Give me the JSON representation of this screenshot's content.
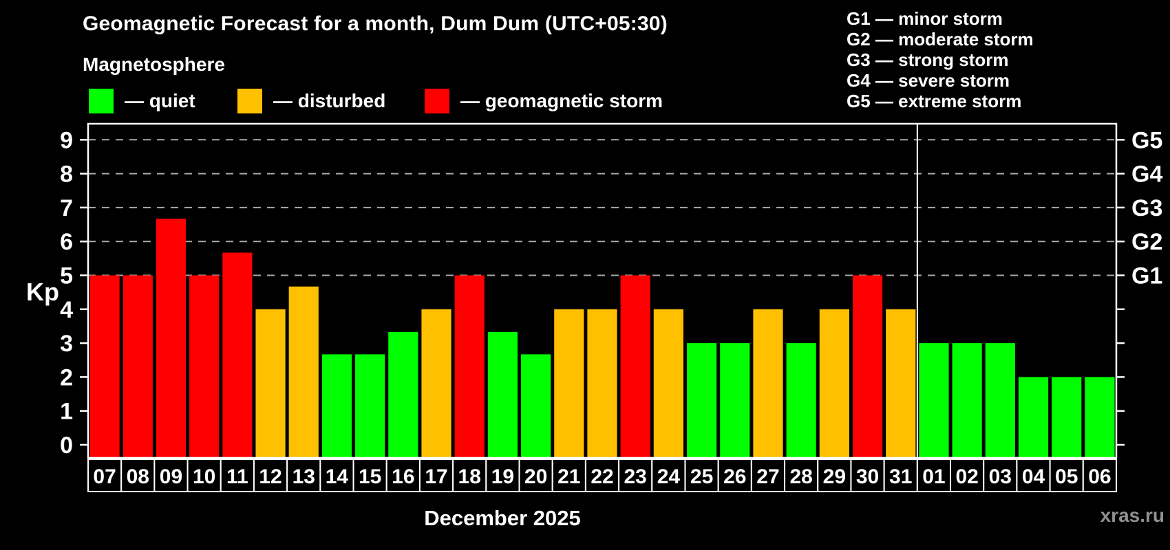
{
  "header": {
    "title": "Geomagnetic Forecast for a month, Dum Dum (UTC+05:30)",
    "subtitle": "Magnetosphere"
  },
  "legend": {
    "items": [
      {
        "status": "quiet",
        "label": "— quiet"
      },
      {
        "status": "disturbed",
        "label": "— disturbed"
      },
      {
        "status": "storm",
        "label": "— geomagnetic storm"
      }
    ]
  },
  "storm_legend": {
    "items": [
      "G1 — minor storm",
      "G2 — moderate storm",
      "G3 — strong storm",
      "G4 — severe storm",
      "G5 — extreme storm"
    ]
  },
  "colors": {
    "quiet": "#00ff00",
    "disturbed": "#ffc000",
    "storm": "#ff0000",
    "grid": "#aaaaaa",
    "axis": "#ffffff",
    "background": "#000000",
    "watermark": "#909090"
  },
  "chart_data": {
    "type": "bar",
    "title": "Geomagnetic Forecast for a month, Dum Dum (UTC+05:30)",
    "ylabel": "Kp",
    "xlabel": "December 2025",
    "ylim": [
      -0.4,
      9.5
    ],
    "yticks": [
      0,
      1,
      2,
      3,
      4,
      5,
      6,
      7,
      8,
      9
    ],
    "gridline_values": [
      5,
      6,
      7,
      8,
      9
    ],
    "grid": "dashed horizontal lines at G-storm levels only",
    "legend_position": "top-left",
    "right_axis_labels": [
      {
        "label": "G1",
        "value": 5
      },
      {
        "label": "G2",
        "value": 6
      },
      {
        "label": "G3",
        "value": 7
      },
      {
        "label": "G4",
        "value": 8
      },
      {
        "label": "G5",
        "value": 9
      }
    ],
    "categories": [
      "07",
      "08",
      "09",
      "10",
      "11",
      "12",
      "13",
      "14",
      "15",
      "16",
      "17",
      "18",
      "19",
      "20",
      "21",
      "22",
      "23",
      "24",
      "25",
      "26",
      "27",
      "28",
      "29",
      "30",
      "31",
      "01",
      "02",
      "03",
      "04",
      "05",
      "06"
    ],
    "values": [
      5,
      5,
      6.67,
      5,
      5.67,
      4,
      4.67,
      2.67,
      2.67,
      3.33,
      4,
      5,
      3.33,
      2.67,
      4,
      4,
      5,
      4,
      3,
      3,
      4,
      3,
      4,
      5,
      4,
      3,
      3,
      3,
      2,
      2,
      2
    ],
    "statuses": [
      "storm",
      "storm",
      "storm",
      "storm",
      "storm",
      "disturbed",
      "disturbed",
      "quiet",
      "quiet",
      "quiet",
      "disturbed",
      "storm",
      "quiet",
      "quiet",
      "disturbed",
      "disturbed",
      "storm",
      "disturbed",
      "quiet",
      "quiet",
      "disturbed",
      "quiet",
      "disturbed",
      "storm",
      "disturbed",
      "quiet",
      "quiet",
      "quiet",
      "quiet",
      "quiet",
      "quiet"
    ],
    "month_separator_after_index": 24
  },
  "footer": {
    "xlabel": "December 2025",
    "watermark": "xras.ru"
  }
}
